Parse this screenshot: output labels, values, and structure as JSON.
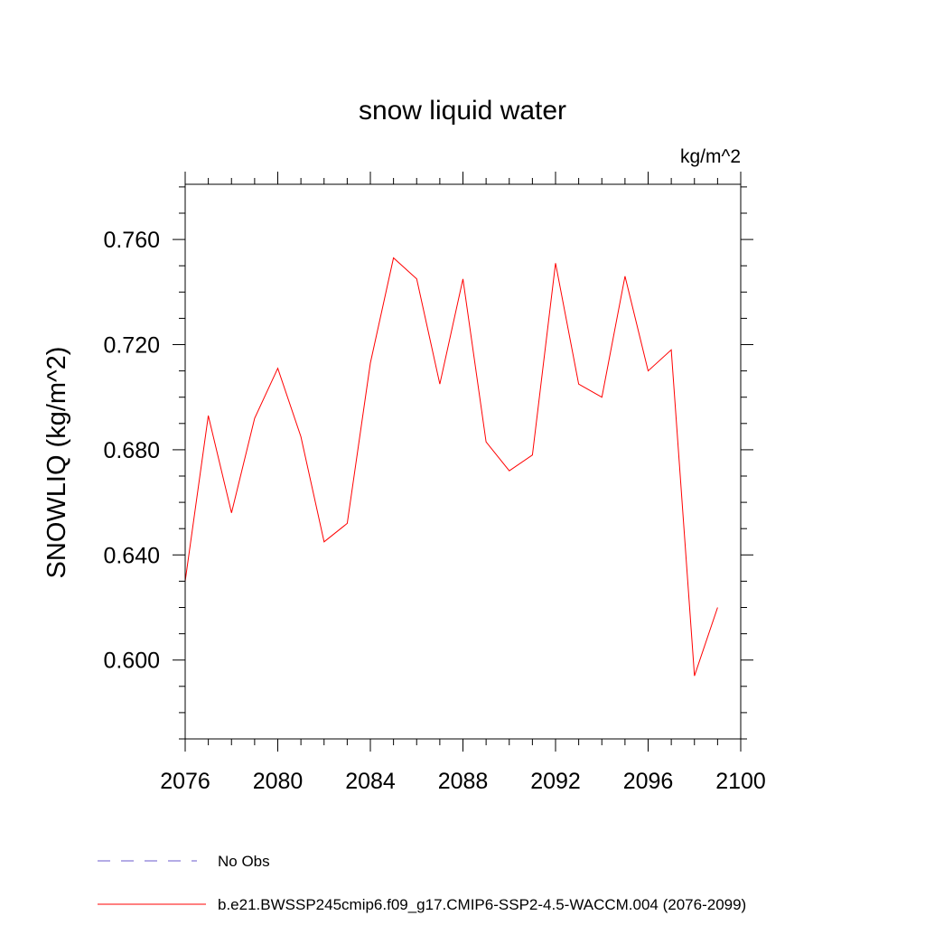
{
  "chart_data": {
    "type": "line",
    "title": "snow liquid water",
    "units": "kg/m^2",
    "ylabel": "SNOWLIQ  (kg/m^2)",
    "xlabel": "",
    "xlim": [
      2076,
      2100
    ],
    "ylim": [
      0.57,
      0.781
    ],
    "x_ticks": [
      2076,
      2080,
      2084,
      2088,
      2092,
      2096,
      2100
    ],
    "y_ticks": [
      0.6,
      0.64,
      0.68,
      0.72,
      0.76
    ],
    "y_tick_labels": [
      "0.600",
      "0.640",
      "0.680",
      "0.720",
      "0.760"
    ],
    "x_tick_labels": [
      "2076",
      "2080",
      "2084",
      "2088",
      "2092",
      "2096",
      "2100"
    ],
    "grid": false,
    "legend_position": "bottom",
    "series": [
      {
        "name": "b.e21.BWSSP245cmip6.f09_g17.CMIP6-SSP2-4.5-WACCM.004 (2076-2099)",
        "color": "#ff0000",
        "style": "solid",
        "x": [
          2076,
          2077,
          2078,
          2079,
          2080,
          2081,
          2082,
          2083,
          2084,
          2085,
          2086,
          2087,
          2088,
          2089,
          2090,
          2091,
          2092,
          2093,
          2094,
          2095,
          2096,
          2097,
          2098,
          2099
        ],
        "values": [
          0.63,
          0.693,
          0.656,
          0.692,
          0.711,
          0.685,
          0.645,
          0.652,
          0.713,
          0.753,
          0.745,
          0.705,
          0.745,
          0.683,
          0.672,
          0.678,
          0.751,
          0.705,
          0.7,
          0.746,
          0.71,
          0.718,
          0.594,
          0.62
        ]
      }
    ],
    "legend": [
      {
        "label": "No Obs",
        "color": "#6a5acd",
        "style": "dashed"
      },
      {
        "label": "b.e21.BWSSP245cmip6.f09_g17.CMIP6-SSP2-4.5-WACCM.004 (2076-2099)",
        "color": "#ff0000",
        "style": "solid"
      }
    ]
  }
}
